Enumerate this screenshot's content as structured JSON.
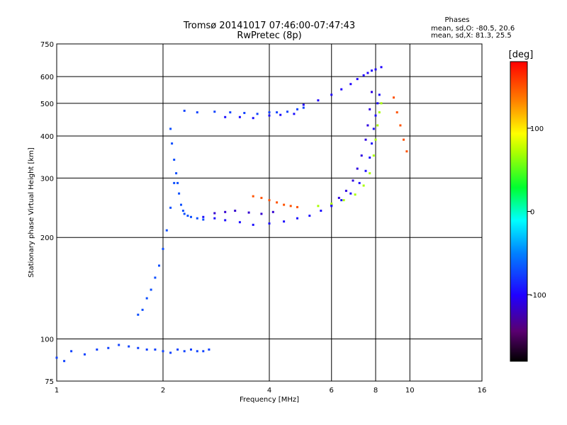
{
  "chart_data": {
    "type": "scatter",
    "title": "Tromsø 20141017 07:46:00-07:47:43",
    "subtitle": "RwPretec (8p)",
    "xlabel": "Frequency [MHz]",
    "ylabel": "Stationary phase Virtual Height [km]",
    "x_scale": "log",
    "y_scale": "log",
    "xlim": [
      1,
      16
    ],
    "ylim": [
      75,
      750
    ],
    "x_ticks": [
      1,
      2,
      4,
      6,
      8,
      10,
      16
    ],
    "y_ticks": [
      75,
      100,
      200,
      300,
      400,
      500,
      600,
      750
    ],
    "grid": true,
    "phase_stats": {
      "heading": "Phases",
      "line_o": "mean, sd,O: -80.5, 20.6",
      "line_x": "mean, sd,X:  81.3, 25.5"
    },
    "colorbar": {
      "label": "[deg]",
      "range": [
        -180,
        180
      ],
      "ticks": [
        100,
        0,
        -100
      ],
      "colormap": "rainbow (black-purple-blue-cyan-green-yellow-red)"
    },
    "series": [
      {
        "traces": [
          {
            "x": [
              1.0,
              1.05,
              1.1,
              1.2,
              1.3,
              1.4,
              1.5,
              1.6,
              1.7,
              1.8,
              1.9,
              2.0,
              2.1,
              2.2,
              2.3,
              2.4,
              2.5,
              2.6,
              2.7
            ],
            "y": [
              88,
              86,
              92,
              90,
              93,
              94,
              96,
              95,
              94,
              93,
              93,
              92,
              91,
              93,
              92,
              93,
              92,
              92,
              93
            ],
            "phase": -75
          },
          {
            "x": [
              1.7,
              1.75,
              1.8,
              1.85,
              1.9,
              1.95,
              2.0,
              2.05,
              2.1,
              2.15
            ],
            "y": [
              118,
              122,
              132,
              140,
              152,
              165,
              185,
              210,
              245,
              290
            ],
            "phase": -70
          },
          {
            "x": [
              2.1,
              2.12,
              2.15,
              2.18,
              2.2,
              2.22,
              2.25,
              2.28,
              2.3,
              2.35,
              2.4,
              2.5,
              2.6
            ],
            "y": [
              420,
              380,
              340,
              310,
              290,
              270,
              250,
              240,
              235,
              232,
              230,
              228,
              226
            ],
            "phase": -70
          },
          {
            "x": [
              2.3,
              2.5,
              2.8,
              3.1,
              3.4,
              3.7,
              4.0,
              4.2,
              4.5,
              4.8,
              5.0
            ],
            "y": [
              475,
              470,
              472,
              470,
              468,
              465,
              470,
              470,
              472,
              480,
              485
            ],
            "phase": -75
          },
          {
            "x": [
              3.0,
              3.3,
              3.6,
              4.0,
              4.3,
              4.7
            ],
            "y": [
              455,
              455,
              452,
              460,
              462,
              465
            ],
            "phase": -95
          },
          {
            "x": [
              2.6,
              2.8,
              3.0,
              3.3,
              3.6,
              4.0,
              4.4,
              4.8,
              5.2,
              5.6,
              6.0,
              6.4,
              6.8,
              7.2,
              7.5,
              7.7,
              7.8,
              7.9,
              8.0,
              8.1,
              8.2
            ],
            "y": [
              230,
              228,
              225,
              222,
              218,
              220,
              223,
              228,
              232,
              240,
              248,
              258,
              270,
              290,
              315,
              345,
              380,
              420,
              460,
              500,
              530
            ],
            "phase": -95
          },
          {
            "x": [
              2.8,
              3.0,
              3.2,
              3.5,
              3.8,
              4.1
            ],
            "y": [
              236,
              238,
              240,
              237,
              235,
              238
            ],
            "phase": -115
          },
          {
            "x": [
              6.0,
              6.3,
              6.6,
              6.9,
              7.1,
              7.3,
              7.5,
              7.6,
              7.7,
              7.8
            ],
            "y": [
              250,
              262,
              275,
              295,
              320,
              350,
              390,
              430,
              480,
              540
            ],
            "phase": -110
          },
          {
            "x": [
              3.6,
              3.8,
              4.0,
              4.2,
              4.4,
              4.6,
              4.8
            ],
            "y": [
              265,
              262,
              258,
              254,
              250,
              248,
              246
            ],
            "phase": 150
          },
          {
            "x": [
              5.5,
              6.0,
              6.5,
              7.0,
              7.4,
              7.7,
              7.9,
              8.0,
              8.1,
              8.2,
              8.3
            ],
            "y": [
              248,
              252,
              258,
              268,
              285,
              310,
              350,
              390,
              430,
              470,
              500
            ],
            "phase": 70
          },
          {
            "x": [
              5.0,
              5.5,
              6.0,
              6.4,
              6.8,
              7.1,
              7.4,
              7.6,
              7.8,
              8.0,
              8.3
            ],
            "y": [
              495,
              510,
              530,
              550,
              570,
              590,
              605,
              615,
              625,
              630,
              640
            ],
            "phase": -100
          },
          {
            "x": [
              9.0,
              9.2,
              9.4,
              9.6,
              9.8
            ],
            "y": [
              520,
              470,
              430,
              390,
              360
            ],
            "phase": 150
          }
        ]
      }
    ]
  }
}
